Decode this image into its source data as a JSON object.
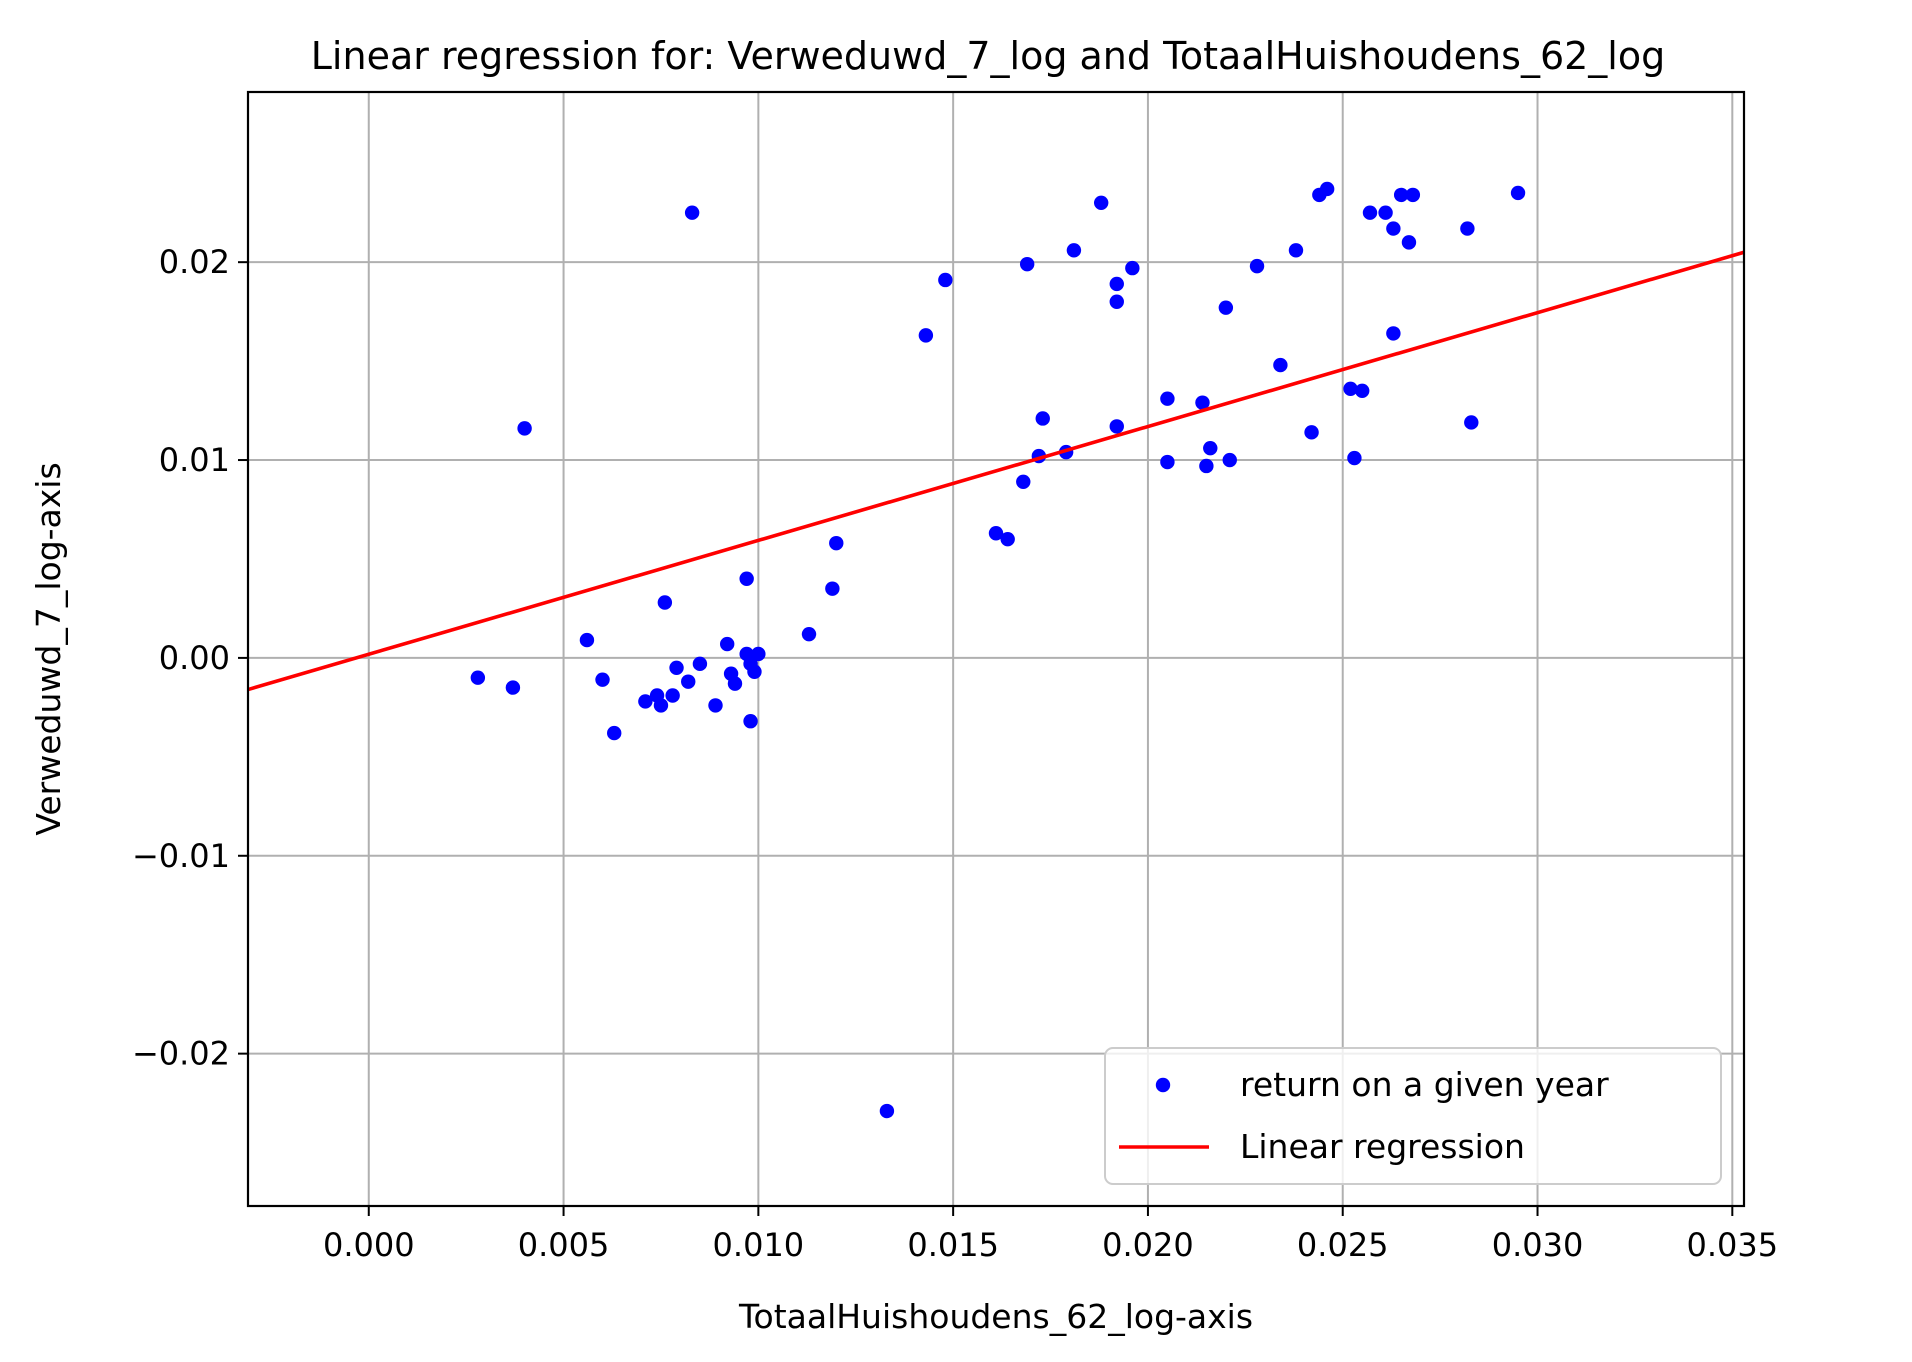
{
  "chart_data": {
    "type": "scatter",
    "title": "Linear regression for: Verweduwd_7_log and TotaalHuishoudens_62_log",
    "xlabel": "TotaalHuishoudens_62_log-axis",
    "ylabel": "Verweduwd_7_log-axis",
    "xlim": [
      -0.0031,
      0.0353
    ],
    "ylim": [
      -0.0277,
      0.0286
    ],
    "xticks": [
      0.0,
      0.005,
      0.01,
      0.015,
      0.02,
      0.025,
      0.03,
      0.035
    ],
    "xtick_labels": [
      "0.000",
      "0.005",
      "0.010",
      "0.015",
      "0.020",
      "0.025",
      "0.030",
      "0.035"
    ],
    "yticks": [
      -0.02,
      -0.01,
      0.0,
      0.01,
      0.02
    ],
    "ytick_labels": [
      "−0.02",
      "−0.01",
      "0.00",
      "0.01",
      "0.02"
    ],
    "grid": true,
    "legend_position": "bottom-right",
    "series": [
      {
        "name": "return on a given year",
        "kind": "scatter",
        "color": "#0000ff",
        "points": [
          [
            0.0028,
            -0.001
          ],
          [
            0.0037,
            -0.0015
          ],
          [
            0.004,
            0.0116
          ],
          [
            0.0056,
            0.0009
          ],
          [
            0.006,
            -0.0011
          ],
          [
            0.0063,
            -0.0038
          ],
          [
            0.0071,
            -0.0022
          ],
          [
            0.0074,
            -0.0019
          ],
          [
            0.0075,
            -0.0024
          ],
          [
            0.0076,
            0.0028
          ],
          [
            0.0078,
            -0.0019
          ],
          [
            0.0079,
            -0.0005
          ],
          [
            0.0082,
            -0.0012
          ],
          [
            0.0083,
            0.0225
          ],
          [
            0.0085,
            -0.0003
          ],
          [
            0.0089,
            -0.0024
          ],
          [
            0.0092,
            0.0007
          ],
          [
            0.0093,
            -0.0008
          ],
          [
            0.0094,
            -0.0013
          ],
          [
            0.0097,
            0.004
          ],
          [
            0.0097,
            0.0002
          ],
          [
            0.0098,
            -0.0003
          ],
          [
            0.0098,
            -0.0032
          ],
          [
            0.0099,
            -0.0007
          ],
          [
            0.01,
            0.0002
          ],
          [
            0.0113,
            0.0012
          ],
          [
            0.0119,
            0.0035
          ],
          [
            0.012,
            0.0058
          ],
          [
            0.0133,
            -0.0229
          ],
          [
            0.0143,
            0.0163
          ],
          [
            0.0148,
            0.0191
          ],
          [
            0.0161,
            0.0063
          ],
          [
            0.0164,
            0.006
          ],
          [
            0.0168,
            0.0089
          ],
          [
            0.0169,
            0.0199
          ],
          [
            0.0172,
            0.0102
          ],
          [
            0.0173,
            0.0121
          ],
          [
            0.0179,
            0.0104
          ],
          [
            0.0181,
            0.0206
          ],
          [
            0.0188,
            0.023
          ],
          [
            0.0192,
            0.0117
          ],
          [
            0.0192,
            0.0189
          ],
          [
            0.0192,
            0.018
          ],
          [
            0.0196,
            0.0197
          ],
          [
            0.0205,
            0.0099
          ],
          [
            0.0205,
            0.0131
          ],
          [
            0.0214,
            0.0129
          ],
          [
            0.0215,
            0.0097
          ],
          [
            0.0216,
            0.0106
          ],
          [
            0.022,
            0.0177
          ],
          [
            0.0221,
            0.01
          ],
          [
            0.0228,
            0.0198
          ],
          [
            0.0234,
            0.0148
          ],
          [
            0.0238,
            0.0206
          ],
          [
            0.0242,
            0.0114
          ],
          [
            0.0244,
            0.0234
          ],
          [
            0.0246,
            0.0237
          ],
          [
            0.0252,
            0.0136
          ],
          [
            0.0253,
            0.0101
          ],
          [
            0.0255,
            0.0135
          ],
          [
            0.0257,
            0.0225
          ],
          [
            0.0261,
            0.0225
          ],
          [
            0.0263,
            0.0217
          ],
          [
            0.0263,
            0.0164
          ],
          [
            0.0265,
            0.0234
          ],
          [
            0.0267,
            0.021
          ],
          [
            0.0268,
            0.0234
          ],
          [
            0.0282,
            0.0217
          ],
          [
            0.0283,
            0.0119
          ],
          [
            0.0295,
            0.0235
          ]
        ]
      },
      {
        "name": "Linear regression",
        "kind": "line",
        "color": "#ff0000",
        "x": [
          -0.0031,
          0.0353
        ],
        "y": [
          -0.0016,
          0.0205
        ]
      }
    ]
  }
}
